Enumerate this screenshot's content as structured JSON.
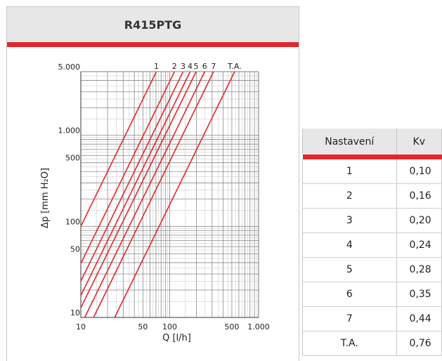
{
  "header": {
    "title": "R415PTG"
  },
  "chart_data": {
    "type": "line",
    "xlabel": "Q [l/h]",
    "ylabel": "Δp [mm H₂O]",
    "xscale": "log",
    "yscale": "log",
    "xlim": [
      10,
      1000
    ],
    "ylim": [
      10,
      5000
    ],
    "xticks": [
      {
        "value": 10,
        "label": "10"
      },
      {
        "value": 50,
        "label": "50"
      },
      {
        "value": 100,
        "label": "100"
      },
      {
        "value": 500,
        "label": "500"
      },
      {
        "value": 1000,
        "label": "1.000"
      }
    ],
    "yticks": [
      {
        "value": 10,
        "label": "10"
      },
      {
        "value": 50,
        "label": "50"
      },
      {
        "value": 100,
        "label": "100"
      },
      {
        "value": 500,
        "label": "500"
      },
      {
        "value": 1000,
        "label": "1.000"
      },
      {
        "value": 5000,
        "label": "5.000"
      }
    ],
    "grid": true,
    "line_color": "#e3262c",
    "series": [
      {
        "name": "1",
        "kv": 0.1
      },
      {
        "name": "2",
        "kv": 0.16
      },
      {
        "name": "3",
        "kv": 0.2
      },
      {
        "name": "4",
        "kv": 0.24
      },
      {
        "name": "5",
        "kv": 0.28
      },
      {
        "name": "6",
        "kv": 0.35
      },
      {
        "name": "7",
        "kv": 0.44
      },
      {
        "name": "T.A.",
        "kv": 0.76
      }
    ]
  },
  "table": {
    "headers": [
      "Nastavení",
      "Kv"
    ],
    "rows": [
      [
        "1",
        "0,10"
      ],
      [
        "2",
        "0,16"
      ],
      [
        "3",
        "0,20"
      ],
      [
        "4",
        "0,24"
      ],
      [
        "5",
        "0,28"
      ],
      [
        "6",
        "0,35"
      ],
      [
        "7",
        "0,44"
      ],
      [
        "T.A.",
        "0,76"
      ]
    ]
  }
}
